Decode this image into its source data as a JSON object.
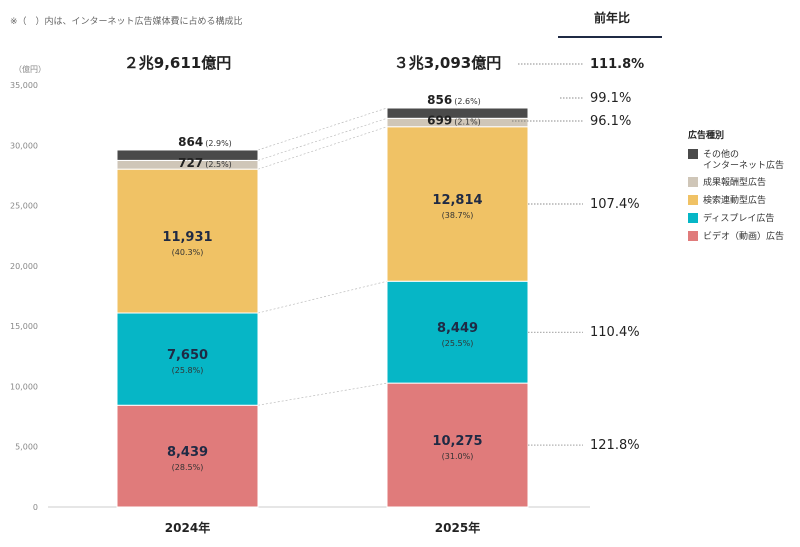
{
  "note": "※（　）内は、インターネット広告媒体費に占める構成比",
  "yoy_header": "前年比",
  "chart_data": {
    "type": "bar",
    "stacked": true,
    "ylabel": "（億円）",
    "ylim": [
      0,
      35000
    ],
    "yticks": [
      "0",
      "5,000",
      "10,000",
      "15,000",
      "20,000",
      "25,000",
      "30,000",
      "35,000"
    ],
    "ytick_values": [
      0,
      5000,
      10000,
      15000,
      20000,
      25000,
      30000,
      35000
    ],
    "categories": [
      "2024年",
      "2025年"
    ],
    "totals": [
      29611,
      33093
    ],
    "total_labels": [
      "２兆9,611億円",
      "３兆3,093億円"
    ],
    "total_yoy": "111.8%",
    "legend_title": "広告種別",
    "legend_position": "right",
    "series": [
      {
        "name": "ビデオ（動画）広告",
        "color": "#e07b7b",
        "values": [
          8439,
          10275
        ],
        "labels": [
          "8,439",
          "10,275"
        ],
        "pcts": [
          "(28.5%)",
          "(31.0%)"
        ],
        "yoy": "121.8%"
      },
      {
        "name": "ディスプレイ広告",
        "color": "#06b6c6",
        "values": [
          7650,
          8449
        ],
        "labels": [
          "7,650",
          "8,449"
        ],
        "pcts": [
          "(25.8%)",
          "(25.5%)"
        ],
        "yoy": "110.4%"
      },
      {
        "name": "検索連動型広告",
        "color": "#f0c265",
        "values": [
          11931,
          12814
        ],
        "labels": [
          "11,931",
          "12,814"
        ],
        "pcts": [
          "(40.3%)",
          "(38.7%)"
        ],
        "yoy": "107.4%"
      },
      {
        "name": "成果報酬型広告",
        "color": "#cfc6b8",
        "values": [
          727,
          699
        ],
        "labels": [
          "727",
          "699"
        ],
        "pcts": [
          "(2.5%)",
          "(2.1%)"
        ],
        "yoy": "96.1%"
      },
      {
        "name": "その他の\nインターネット広告",
        "color": "#4a4a4a",
        "values": [
          864,
          856
        ],
        "labels": [
          "864",
          "856"
        ],
        "pcts": [
          "(2.9%)",
          "(2.6%)"
        ],
        "yoy": "99.1%"
      }
    ]
  }
}
